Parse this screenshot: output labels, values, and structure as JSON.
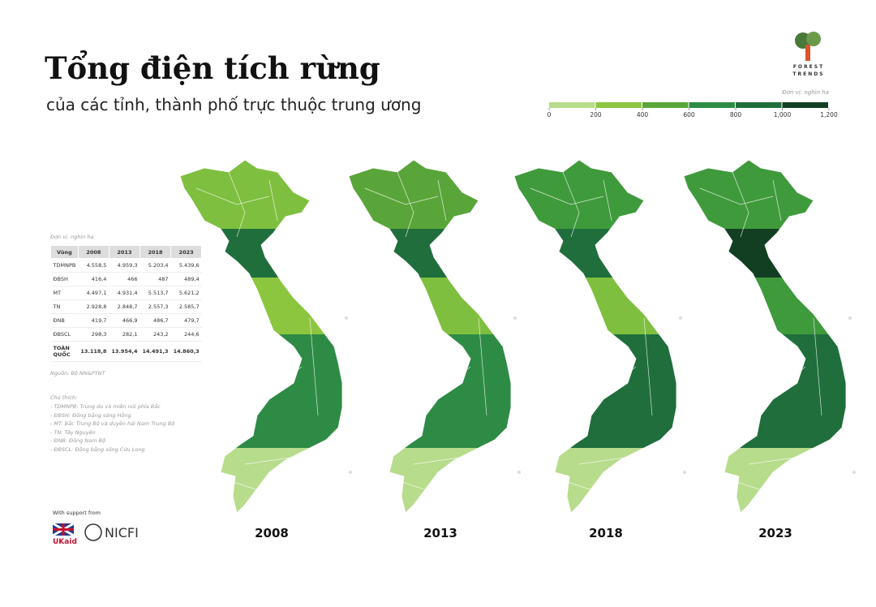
{
  "header": {
    "title": "Tổng điện tích rừng",
    "subtitle": "của các tỉnh, thành phố trực thuộc trung ương"
  },
  "logo": {
    "line1": "FOREST",
    "line2": "TRENDS"
  },
  "legend": {
    "unit": "Đơn vị: nghìn ha",
    "ticks": [
      0,
      200,
      400,
      600,
      800,
      {
        "value": 1000,
        "label": "1,000"
      },
      {
        "value": 1200,
        "label": "1,200"
      }
    ],
    "colors": [
      "#b7dc8c",
      "#8cc63f",
      "#5aa53a",
      "#2e8b45",
      "#1f6e3c",
      "#123f22"
    ]
  },
  "table": {
    "unit": "Đơn vị: nghìn ha",
    "header": [
      "Vùng",
      "2008",
      "2013",
      "2018",
      "2023"
    ],
    "rows": [
      [
        "TDMNPB",
        "4.558,5",
        "4.959,3",
        "5.203,4",
        "5.439,6"
      ],
      [
        "ĐBSH",
        "416,4",
        "466",
        "487",
        "489,4"
      ],
      [
        "MT",
        "4.497,1",
        "4.931,4",
        "5.513,7",
        "5.621,2"
      ],
      [
        "TN",
        "2.928,8",
        "2.848,7",
        "2.557,3",
        "2.585,7"
      ],
      [
        "ĐNB",
        "419,7",
        "466,9",
        "486,7",
        "479,7"
      ],
      [
        "ĐBSCL",
        "298,3",
        "282,1",
        "243,2",
        "244,6"
      ],
      [
        "TOÀN QUỐC",
        "13.118,8",
        "13.954,4",
        "14.491,3",
        "14.860,3"
      ]
    ],
    "source": "Nguồn: Bộ NN&PTNT"
  },
  "notes": {
    "title": "Chú thích:",
    "items": [
      "- TDMNPB: Trung du và miền núi phía Bắc",
      "- ĐBSH: Đồng bằng sông Hồng",
      "- MT: Bắc Trung Bộ và duyên hải Nam Trung Bộ",
      "- TN: Tây Nguyên",
      "- ĐNB: Đông Nam Bộ",
      "- ĐBSCL: Đồng bằng sông Cửu Long"
    ]
  },
  "support": {
    "label": "With support from",
    "logo1": "UKaid",
    "logo2": "NICFI"
  },
  "maps": [
    {
      "year": "2008"
    },
    {
      "year": "2013"
    },
    {
      "year": "2018"
    },
    {
      "year": "2023"
    }
  ]
}
